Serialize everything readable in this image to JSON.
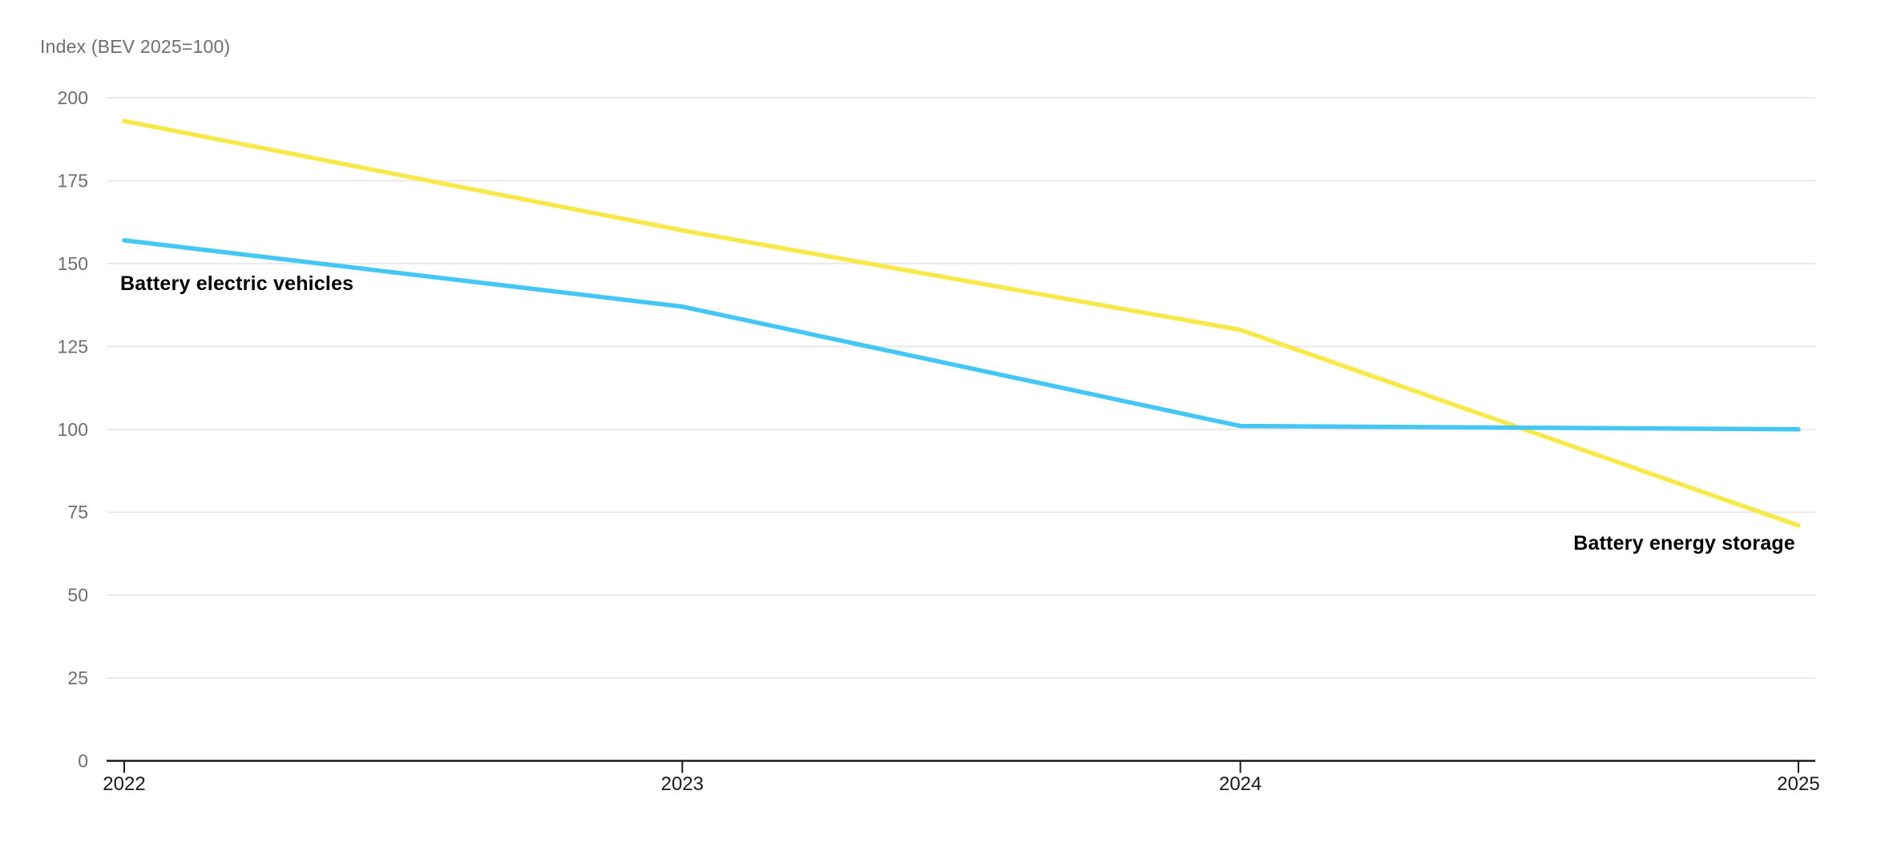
{
  "chart_data": {
    "type": "line",
    "title": "Index (BEV 2025=100)",
    "x": [
      "2022",
      "2023",
      "2024",
      "2025"
    ],
    "xlabel": "",
    "ylabel": "Index (BEV 2025=100)",
    "ylim": [
      0,
      200
    ],
    "y_ticks": [
      0,
      25,
      50,
      75,
      100,
      125,
      150,
      175,
      200
    ],
    "grid": "horizontal gridlines on, vertical off",
    "legend_position": "inline labels next to lines",
    "series": [
      {
        "name": "Battery energy storage",
        "color": "#f9e84a",
        "values": [
          193,
          160,
          130,
          71
        ]
      },
      {
        "name": "Battery electric vehicles",
        "color": "#44c7f4",
        "values": [
          157,
          137,
          101,
          100
        ]
      }
    ],
    "colors": {
      "background": "#ffffff",
      "grid_line": "#e9e9e9",
      "axis_line": "#1a1a1a",
      "y_tick_label": "#6e6e6e",
      "x_tick_label": "#1a1a1a",
      "title_text": "#6e6e6e",
      "series_label_text": "#000000"
    }
  }
}
